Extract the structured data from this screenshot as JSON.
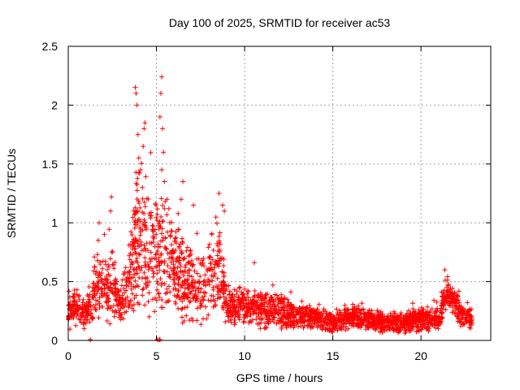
{
  "chart_data": {
    "type": "scatter",
    "title": "Day 100 of 2025, SRMTID for receiver ac53",
    "xlabel": "GPS time / hours",
    "ylabel": "SRMTID / TECUs",
    "xlim": [
      0,
      24
    ],
    "ylim": [
      0,
      2.5
    ],
    "grid": true,
    "marker": "+",
    "color": "#ff0000",
    "x_ticks": [
      0,
      5,
      10,
      15,
      20
    ],
    "x_tick_labels": [
      "0",
      "5",
      "10",
      "15",
      "20"
    ],
    "y_ticks": [
      0,
      0.5,
      1,
      1.5,
      2,
      2.5
    ],
    "y_tick_labels": [
      "0",
      "0.5",
      "1",
      "1.5",
      "2",
      "2.5"
    ],
    "series_profile": [
      {
        "x": 0.0,
        "level": 0.22,
        "spread": 0.1
      },
      {
        "x": 0.5,
        "level": 0.28,
        "spread": 0.15
      },
      {
        "x": 1.0,
        "level": 0.22,
        "spread": 0.1
      },
      {
        "x": 1.5,
        "level": 0.4,
        "spread": 0.18
      },
      {
        "x": 2.0,
        "level": 0.45,
        "spread": 0.22
      },
      {
        "x": 2.5,
        "level": 0.45,
        "spread": 0.25
      },
      {
        "x": 3.0,
        "level": 0.3,
        "spread": 0.15
      },
      {
        "x": 3.5,
        "level": 0.55,
        "spread": 0.3
      },
      {
        "x": 4.0,
        "level": 0.9,
        "spread": 0.6
      },
      {
        "x": 4.5,
        "level": 0.75,
        "spread": 0.45
      },
      {
        "x": 5.0,
        "level": 0.7,
        "spread": 0.35
      },
      {
        "x": 5.5,
        "level": 0.75,
        "spread": 0.45
      },
      {
        "x": 6.0,
        "level": 0.6,
        "spread": 0.3
      },
      {
        "x": 6.5,
        "level": 0.55,
        "spread": 0.3
      },
      {
        "x": 7.0,
        "level": 0.45,
        "spread": 0.25
      },
      {
        "x": 7.5,
        "level": 0.4,
        "spread": 0.25
      },
      {
        "x": 8.0,
        "level": 0.55,
        "spread": 0.3
      },
      {
        "x": 8.5,
        "level": 0.7,
        "spread": 0.3
      },
      {
        "x": 9.0,
        "level": 0.28,
        "spread": 0.12
      },
      {
        "x": 10.0,
        "level": 0.3,
        "spread": 0.12
      },
      {
        "x": 11.0,
        "level": 0.25,
        "spread": 0.12
      },
      {
        "x": 12.0,
        "level": 0.25,
        "spread": 0.12
      },
      {
        "x": 13.0,
        "level": 0.2,
        "spread": 0.08
      },
      {
        "x": 14.0,
        "level": 0.2,
        "spread": 0.08
      },
      {
        "x": 15.0,
        "level": 0.15,
        "spread": 0.07
      },
      {
        "x": 16.0,
        "level": 0.2,
        "spread": 0.08
      },
      {
        "x": 17.0,
        "level": 0.18,
        "spread": 0.07
      },
      {
        "x": 18.0,
        "level": 0.15,
        "spread": 0.07
      },
      {
        "x": 19.0,
        "level": 0.15,
        "spread": 0.07
      },
      {
        "x": 20.0,
        "level": 0.18,
        "spread": 0.08
      },
      {
        "x": 21.0,
        "level": 0.18,
        "spread": 0.08
      },
      {
        "x": 21.5,
        "level": 0.42,
        "spread": 0.1
      },
      {
        "x": 22.0,
        "level": 0.3,
        "spread": 0.1
      },
      {
        "x": 22.5,
        "level": 0.18,
        "spread": 0.07
      },
      {
        "x": 22.9,
        "level": 0.18,
        "spread": 0.07
      }
    ],
    "peaks": [
      [
        3.8,
        2.15
      ],
      [
        3.85,
        2.1
      ],
      [
        3.9,
        2.0
      ],
      [
        3.95,
        1.75
      ],
      [
        4.0,
        1.55
      ],
      [
        4.35,
        1.85
      ],
      [
        4.3,
        1.8
      ],
      [
        4.25,
        1.65
      ],
      [
        4.1,
        1.45
      ],
      [
        4.2,
        1.3
      ],
      [
        5.3,
        2.24
      ],
      [
        5.25,
        2.1
      ],
      [
        5.2,
        1.9
      ],
      [
        5.35,
        1.8
      ],
      [
        5.4,
        1.6
      ],
      [
        5.3,
        1.45
      ],
      [
        5.45,
        1.35
      ],
      [
        6.5,
        1.35
      ],
      [
        6.4,
        1.2
      ],
      [
        7.1,
        1.15
      ],
      [
        8.55,
        1.25
      ],
      [
        8.75,
        1.15
      ],
      [
        8.85,
        1.1
      ],
      [
        2.45,
        1.22
      ],
      [
        2.4,
        1.1
      ],
      [
        1.75,
        1.0
      ],
      [
        1.7,
        0.85
      ],
      [
        2.05,
        0.9
      ],
      [
        10.55,
        0.66
      ],
      [
        21.35,
        0.6
      ]
    ],
    "outliers": [
      [
        1.25,
        0.0
      ],
      [
        5.05,
        0.0
      ],
      [
        5.15,
        0.0
      ],
      [
        5.2,
        0.0
      ]
    ],
    "point_count": 2600,
    "x_max": 22.9
  }
}
